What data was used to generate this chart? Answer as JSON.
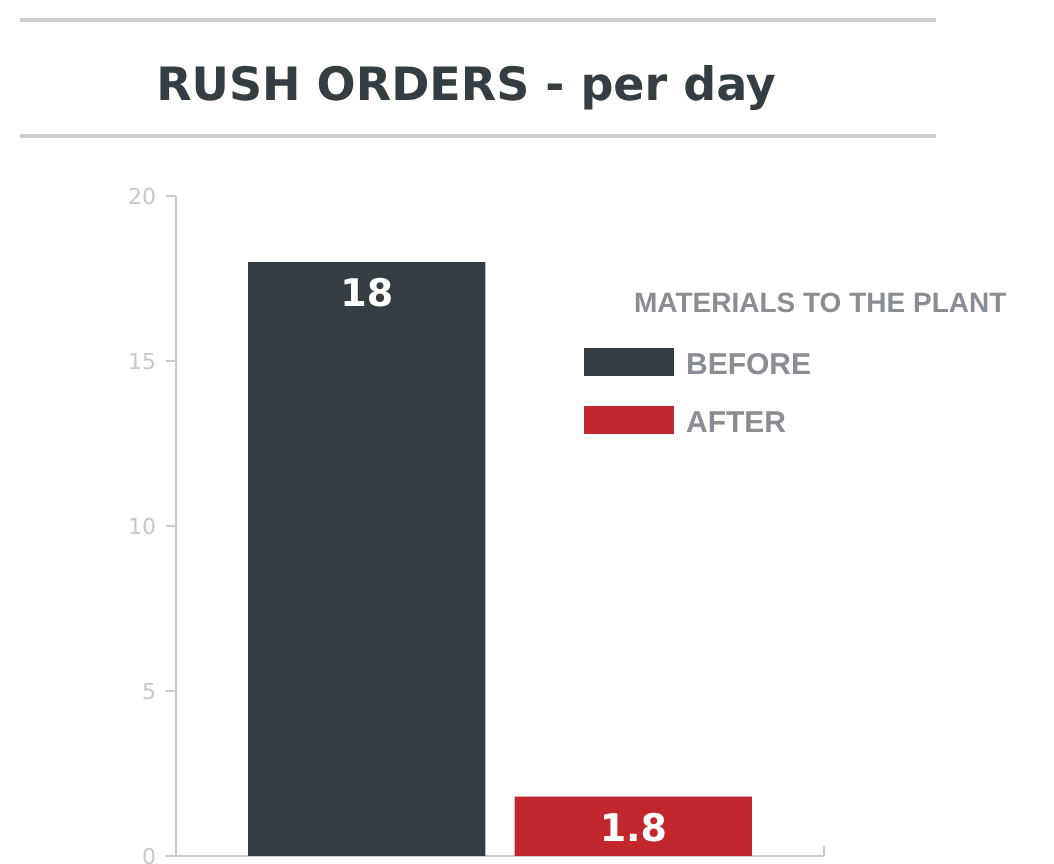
{
  "chart_data": {
    "type": "bar",
    "title": "RUSH ORDERS - per day",
    "legend_title": "MATERIALS TO THE PLANT",
    "categories": [
      null,
      null
    ],
    "series": [
      {
        "name": "BEFORE",
        "color": "#333d42",
        "values": [
          18,
          null
        ]
      },
      {
        "name": "AFTER",
        "color": "#c1272d",
        "values": [
          null,
          1.8
        ]
      }
    ],
    "ylim": [
      0,
      20
    ],
    "yticks": [
      0,
      5,
      10,
      15,
      20
    ],
    "data_labels": true,
    "legend": "top right",
    "grid": false
  }
}
